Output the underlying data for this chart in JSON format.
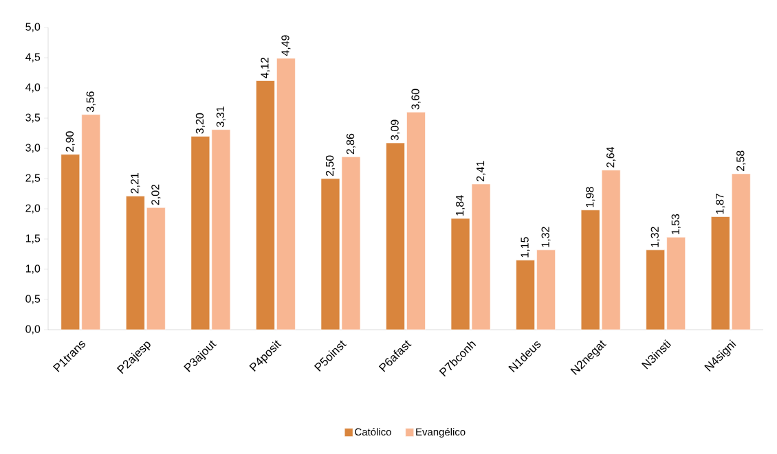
{
  "chart_data": {
    "type": "bar",
    "categories": [
      "P1trans",
      "P2ajesp",
      "P3ajout",
      "P4posit",
      "P5oinst",
      "P6afast",
      "P7bconh",
      "N1deus",
      "N2negat",
      "N3insti",
      "N4signi"
    ],
    "series": [
      {
        "name": "Católico",
        "color": "#d9853d",
        "values": [
          2.9,
          2.21,
          3.2,
          4.12,
          2.5,
          3.09,
          1.84,
          1.15,
          1.98,
          1.32,
          1.87
        ],
        "value_labels": [
          "2,90",
          "2,21",
          "3,20",
          "4,12",
          "2,50",
          "3,09",
          "1,84",
          "1,15",
          "1,98",
          "1,32",
          "1,87"
        ]
      },
      {
        "name": "Evangélico",
        "color": "#f8b692",
        "values": [
          3.56,
          2.02,
          3.31,
          4.49,
          2.86,
          3.6,
          2.41,
          1.32,
          2.64,
          1.53,
          2.58
        ],
        "value_labels": [
          "3,56",
          "2,02",
          "3,31",
          "4,49",
          "2,86",
          "3,60",
          "2,41",
          "1,32",
          "2,64",
          "1,53",
          "2,58"
        ]
      }
    ],
    "ylim": [
      0,
      5
    ],
    "yticks": [
      {
        "value": 0,
        "label": "0,0"
      },
      {
        "value": 0.5,
        "label": "0,5"
      },
      {
        "value": 1,
        "label": "1,0"
      },
      {
        "value": 1.5,
        "label": "1,5"
      },
      {
        "value": 2,
        "label": "2,0"
      },
      {
        "value": 2.5,
        "label": "2,5"
      },
      {
        "value": 3,
        "label": "3,0"
      },
      {
        "value": 3.5,
        "label": "3,5"
      },
      {
        "value": 4,
        "label": "4,0"
      },
      {
        "value": 4.5,
        "label": "4,5"
      },
      {
        "value": 5,
        "label": "5,0"
      }
    ],
    "grid": false,
    "legend": "bottom"
  }
}
